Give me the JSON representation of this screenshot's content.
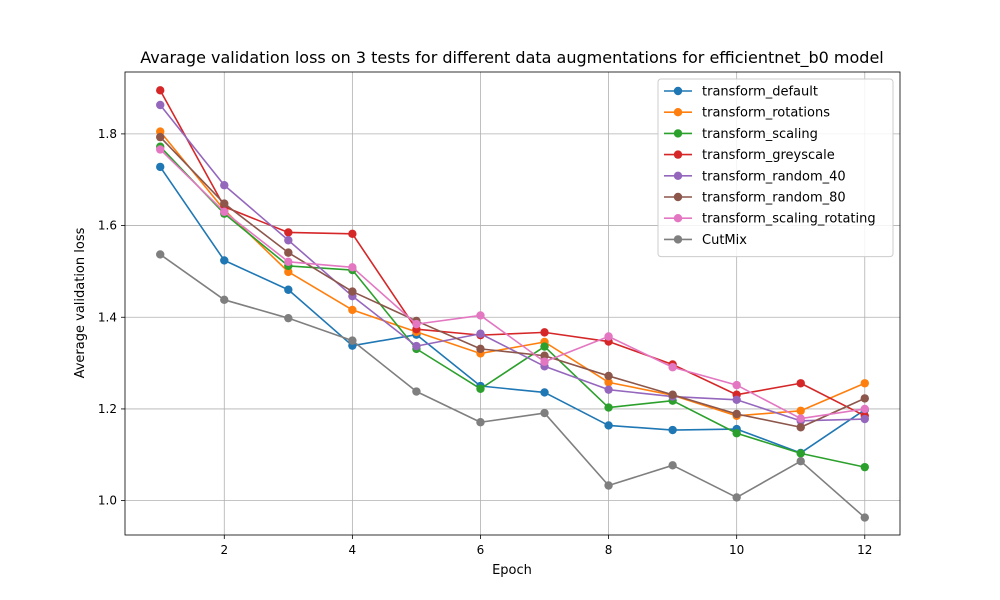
{
  "chart_data": {
    "type": "line",
    "title": "Avarage validation loss on 3 tests for different data augmentations for efficientnet_b0 model",
    "xlabel": "Epoch",
    "ylabel": "Average validation loss",
    "x": [
      1,
      2,
      3,
      4,
      5,
      6,
      7,
      8,
      9,
      10,
      11,
      12
    ],
    "xlim": [
      0.45,
      12.55
    ],
    "ylim": [
      0.925,
      1.935
    ],
    "xticks": [
      2,
      4,
      6,
      8,
      10,
      12
    ],
    "yticks": [
      1.0,
      1.2,
      1.4,
      1.6,
      1.8
    ],
    "xtick_labels": [
      "2",
      "4",
      "6",
      "8",
      "10",
      "12"
    ],
    "ytick_labels": [
      "1.0",
      "1.2",
      "1.4",
      "1.6",
      "1.8"
    ],
    "grid": true,
    "legend_position": "top-right",
    "series": [
      {
        "name": "transform_default",
        "color": "#1f77b4",
        "values": [
          1.728,
          1.524,
          1.46,
          1.338,
          1.362,
          1.25,
          1.236,
          1.164,
          1.154,
          1.156,
          1.104,
          1.198
        ]
      },
      {
        "name": "transform_rotations",
        "color": "#ff7f0e",
        "values": [
          1.805,
          1.634,
          1.499,
          1.416,
          1.368,
          1.321,
          1.346,
          1.258,
          1.23,
          1.185,
          1.196,
          1.256
        ]
      },
      {
        "name": "transform_scaling",
        "color": "#2ca02c",
        "values": [
          1.772,
          1.626,
          1.512,
          1.503,
          1.331,
          1.244,
          1.336,
          1.203,
          1.218,
          1.147,
          1.103,
          1.073
        ]
      },
      {
        "name": "transform_greyscale",
        "color": "#d62728",
        "values": [
          1.895,
          1.641,
          1.585,
          1.582,
          1.374,
          1.361,
          1.367,
          1.347,
          1.297,
          1.231,
          1.256,
          1.185
        ]
      },
      {
        "name": "transform_random_40",
        "color": "#9467bd",
        "values": [
          1.863,
          1.688,
          1.568,
          1.446,
          1.337,
          1.364,
          1.293,
          1.242,
          1.227,
          1.22,
          1.174,
          1.178
        ]
      },
      {
        "name": "transform_random_80",
        "color": "#8c564b",
        "values": [
          1.793,
          1.648,
          1.541,
          1.456,
          1.392,
          1.331,
          1.316,
          1.272,
          1.231,
          1.189,
          1.16,
          1.223
        ]
      },
      {
        "name": "transform_scaling_rotating",
        "color": "#e377c2",
        "values": [
          1.766,
          1.63,
          1.521,
          1.509,
          1.385,
          1.404,
          1.303,
          1.358,
          1.291,
          1.252,
          1.179,
          1.2
        ]
      },
      {
        "name": "CutMix",
        "color": "#7f7f7f",
        "values": [
          1.537,
          1.438,
          1.398,
          1.349,
          1.238,
          1.171,
          1.191,
          1.033,
          1.077,
          1.007,
          1.086,
          0.963
        ]
      }
    ]
  }
}
